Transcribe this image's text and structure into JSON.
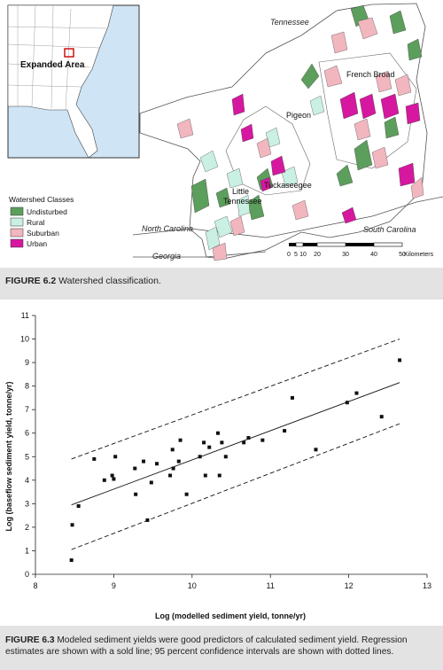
{
  "figure1": {
    "inset_label": "Expanded Area",
    "legend_title": "Watershed Classes",
    "legend": [
      {
        "label": "Undisturbed",
        "color": "#5c9e5c"
      },
      {
        "label": "Rural",
        "color": "#c9f0e2"
      },
      {
        "label": "Suburban",
        "color": "#f2b6bf"
      },
      {
        "label": "Urban",
        "color": "#d6179f"
      }
    ],
    "places": {
      "tennessee": "Tennessee",
      "french_broad": "French Broad",
      "pigeon": "Pigeon",
      "tuckaseegee": "Tuckaseegee",
      "little_tennessee_1": "Little",
      "little_tennessee_2": "Tennessee",
      "north_carolina": "North Carolina",
      "south_carolina": "South Carolina",
      "georgia": "Georgia"
    },
    "scale": {
      "ticks": [
        "0",
        "5",
        "10",
        "20",
        "30",
        "40",
        "50"
      ],
      "unit": "Kilometers"
    },
    "caption_num": "FIGURE 6.2",
    "caption_text": " Watershed classification."
  },
  "figure2": {
    "caption_num": "FIGURE 6.3",
    "caption_text": " Modeled sediment yields were good predictors of calculated sediment yield. Regression estimates are shown with a sold line; 95 percent confidence intervals are shown with dotted lines."
  },
  "chart_data": {
    "type": "scatter",
    "xlabel": "Log (modelled sediment yield, tonne/yr)",
    "ylabel": "Log (baseflow sediment yield, tonne/yr)",
    "xlim": [
      8,
      13
    ],
    "ylim": [
      0,
      11
    ],
    "xticks": [
      8,
      9,
      10,
      11,
      12,
      13
    ],
    "yticks": [
      0,
      1,
      2,
      3,
      4,
      5,
      6,
      7,
      8,
      9,
      10,
      11
    ],
    "grid": false,
    "points": [
      [
        8.46,
        0.6
      ],
      [
        8.47,
        2.1
      ],
      [
        8.55,
        2.9
      ],
      [
        8.75,
        4.9
      ],
      [
        8.88,
        4.0
      ],
      [
        8.98,
        4.2
      ],
      [
        9.0,
        4.05
      ],
      [
        9.02,
        5.0
      ],
      [
        9.27,
        4.5
      ],
      [
        9.28,
        3.4
      ],
      [
        9.38,
        4.8
      ],
      [
        9.43,
        2.3
      ],
      [
        9.48,
        3.9
      ],
      [
        9.55,
        4.7
      ],
      [
        9.72,
        4.2
      ],
      [
        9.75,
        5.3
      ],
      [
        9.76,
        4.5
      ],
      [
        9.83,
        4.8
      ],
      [
        9.85,
        5.7
      ],
      [
        9.93,
        3.4
      ],
      [
        10.1,
        5.0
      ],
      [
        10.15,
        5.6
      ],
      [
        10.17,
        4.2
      ],
      [
        10.22,
        5.4
      ],
      [
        10.33,
        6.0
      ],
      [
        10.35,
        4.2
      ],
      [
        10.38,
        5.6
      ],
      [
        10.43,
        5.0
      ],
      [
        10.66,
        5.6
      ],
      [
        10.72,
        5.8
      ],
      [
        10.9,
        5.7
      ],
      [
        11.18,
        6.1
      ],
      [
        11.28,
        7.5
      ],
      [
        11.58,
        5.3
      ],
      [
        11.98,
        7.3
      ],
      [
        12.1,
        7.7
      ],
      [
        12.42,
        6.7
      ],
      [
        12.65,
        9.1
      ]
    ],
    "regression": [
      [
        8.46,
        2.95
      ],
      [
        12.65,
        8.15
      ]
    ],
    "ci_upper": [
      [
        8.46,
        4.9
      ],
      [
        12.65,
        10.0
      ]
    ],
    "ci_lower": [
      [
        8.46,
        1.05
      ],
      [
        12.65,
        6.4
      ]
    ]
  }
}
